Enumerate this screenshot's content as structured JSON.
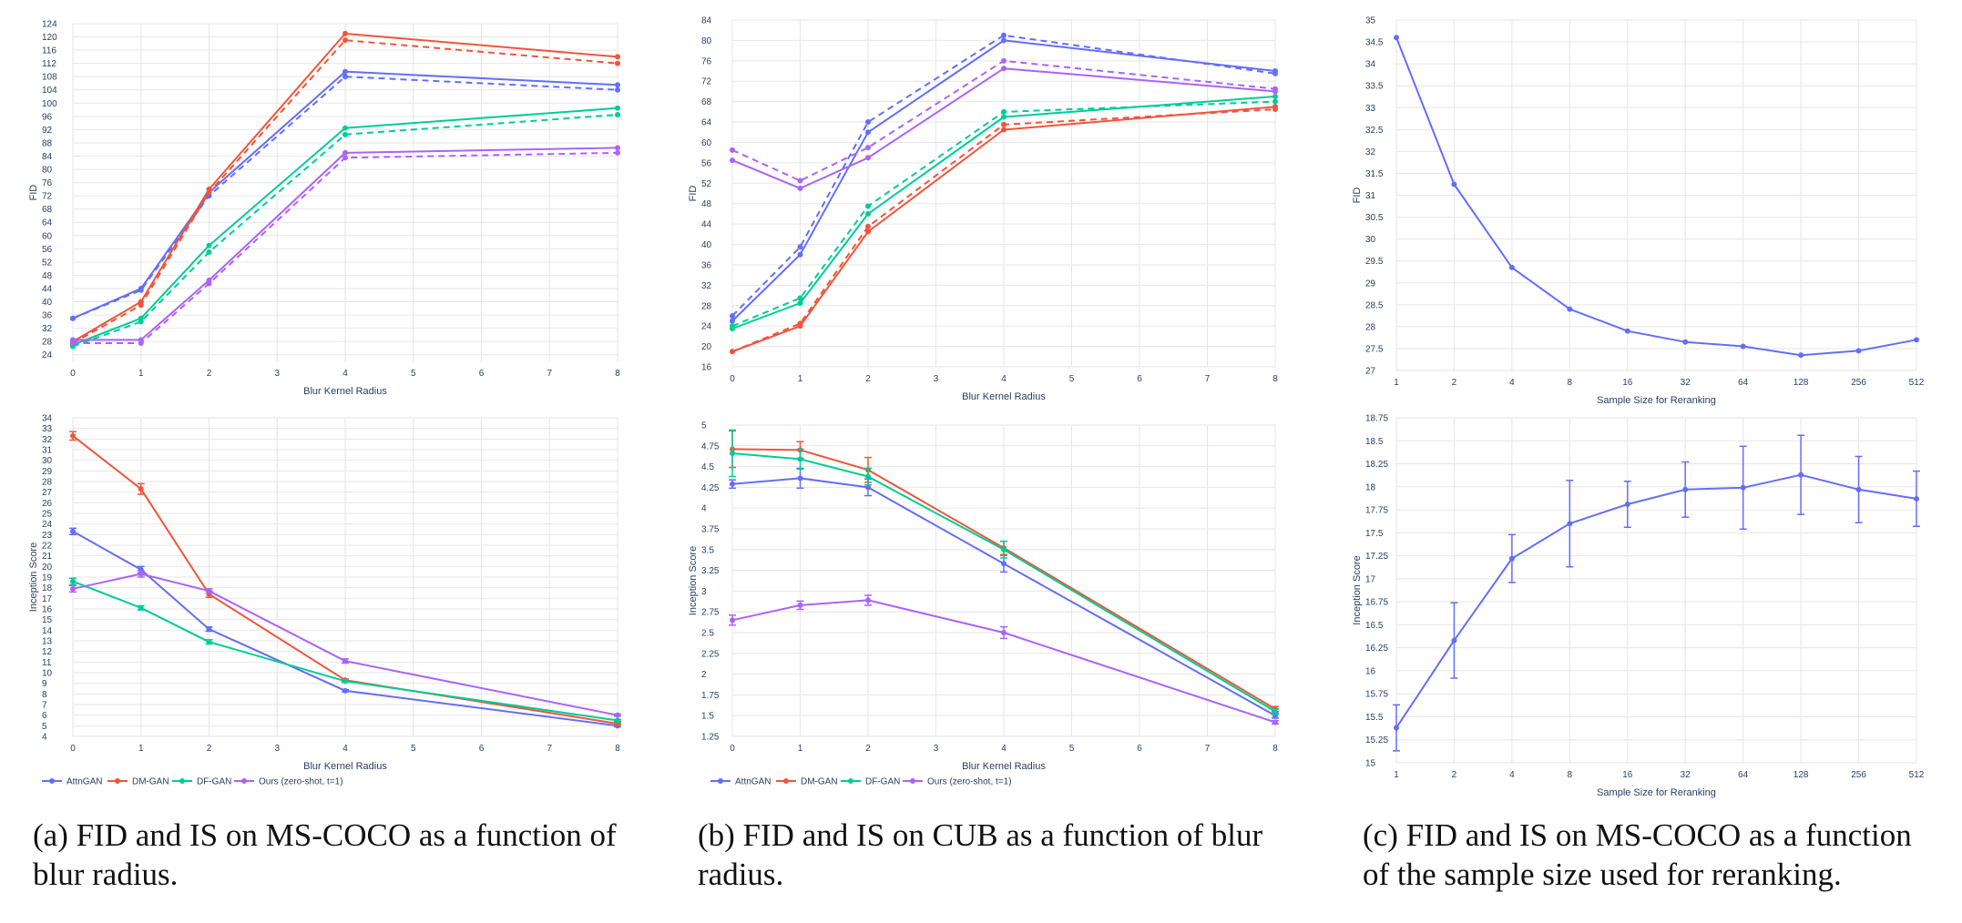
{
  "colors": {
    "AttnGAN": "#636efa",
    "DM-GAN": "#ef553b",
    "DF-GAN": "#00cc96",
    "Ours": "#ab63fa",
    "grid": "#e6e6e6",
    "axis_text": "#2a3f5f"
  },
  "captions": {
    "a": "(a) FID and IS on MS-COCO as a function of blur radius.",
    "b": "(b) FID and IS on CUB as a function of blur radius.",
    "c": "(c) FID and IS on MS-COCO as a function of the sample size used for reranking."
  },
  "legend_entries": [
    "AttnGAN",
    "DM-GAN",
    "DF-GAN",
    "Ours (zero-shot, t=1)"
  ],
  "chart_data": [
    {
      "id": "a-fid",
      "type": "line",
      "title": "",
      "xlabel": "Blur Kernel Radius",
      "ylabel": "FID",
      "x": [
        0,
        1,
        2,
        4,
        8
      ],
      "xlim": [
        0,
        8
      ],
      "xticks": [
        0,
        1,
        2,
        3,
        4,
        5,
        6,
        7,
        8
      ],
      "ylim": [
        22,
        124
      ],
      "yticks": [
        24,
        28,
        32,
        36,
        40,
        44,
        48,
        52,
        56,
        60,
        64,
        68,
        72,
        76,
        80,
        84,
        88,
        92,
        96,
        100,
        104,
        108,
        112,
        116,
        120,
        124
      ],
      "series": [
        {
          "name": "AttnGAN",
          "color_key": "AttnGAN",
          "values": [
            35,
            44,
            73,
            109.5,
            105.5
          ]
        },
        {
          "name": "AttnGAN",
          "color_key": "AttnGAN",
          "dashed": true,
          "values": [
            35,
            43.5,
            72,
            108,
            104
          ]
        },
        {
          "name": "DM-GAN",
          "color_key": "DM-GAN",
          "values": [
            28,
            40,
            74,
            121,
            114
          ]
        },
        {
          "name": "DM-GAN",
          "color_key": "DM-GAN",
          "dashed": true,
          "values": [
            27.5,
            39,
            73,
            119,
            112
          ]
        },
        {
          "name": "DF-GAN",
          "color_key": "DF-GAN",
          "values": [
            27,
            35,
            57,
            92.5,
            98.5
          ]
        },
        {
          "name": "DF-GAN",
          "color_key": "DF-GAN",
          "dashed": true,
          "values": [
            26.5,
            34,
            55,
            90.5,
            96.5
          ]
        },
        {
          "name": "Ours (zero-shot, t=1)",
          "color_key": "Ours",
          "values": [
            28.5,
            28.5,
            46.5,
            85,
            86.5
          ]
        },
        {
          "name": "Ours (zero-shot, t=1)",
          "color_key": "Ours",
          "dashed": true,
          "values": [
            27.5,
            27.5,
            45.5,
            83.5,
            85
          ]
        }
      ]
    },
    {
      "id": "b-fid",
      "type": "line",
      "title": "",
      "xlabel": "Blur Kernel Radius",
      "ylabel": "FID",
      "x": [
        0,
        1,
        2,
        4,
        8
      ],
      "xlim": [
        0,
        8
      ],
      "xticks": [
        0,
        1,
        2,
        3,
        4,
        5,
        6,
        7,
        8
      ],
      "ylim": [
        16,
        84
      ],
      "yticks": [
        16,
        20,
        24,
        28,
        32,
        36,
        40,
        44,
        48,
        52,
        56,
        60,
        64,
        68,
        72,
        76,
        80,
        84
      ],
      "series": [
        {
          "name": "AttnGAN",
          "color_key": "AttnGAN",
          "values": [
            25,
            38,
            62,
            80,
            74
          ]
        },
        {
          "name": "AttnGAN",
          "color_key": "AttnGAN",
          "dashed": true,
          "values": [
            26,
            39.5,
            64,
            81,
            73.5
          ]
        },
        {
          "name": "DM-GAN",
          "color_key": "DM-GAN",
          "values": [
            19,
            24,
            42.5,
            62.5,
            67
          ]
        },
        {
          "name": "DM-GAN",
          "color_key": "DM-GAN",
          "dashed": true,
          "values": [
            19,
            24.5,
            43.5,
            63.5,
            66.5
          ]
        },
        {
          "name": "DF-GAN",
          "color_key": "DF-GAN",
          "values": [
            23.5,
            28.5,
            46,
            65,
            69
          ]
        },
        {
          "name": "DF-GAN",
          "color_key": "DF-GAN",
          "dashed": true,
          "values": [
            24,
            29.5,
            47.5,
            66,
            68
          ]
        },
        {
          "name": "Ours (zero-shot, t=1)",
          "color_key": "Ours",
          "values": [
            56.5,
            51,
            57,
            74.5,
            70
          ]
        },
        {
          "name": "Ours (zero-shot, t=1)",
          "color_key": "Ours",
          "dashed": true,
          "values": [
            58.5,
            52.5,
            59,
            76,
            70.5
          ]
        }
      ]
    },
    {
      "id": "c-fid",
      "type": "line",
      "title": "",
      "xlabel": "Sample Size for Reranking",
      "ylabel": "FID",
      "x": [
        1,
        2,
        4,
        8,
        16,
        32,
        64,
        128,
        256,
        512
      ],
      "xticklabels": [
        "1",
        "2",
        "4",
        "8",
        "16",
        "32",
        "64",
        "128",
        "256",
        "512"
      ],
      "ylim": [
        27,
        35
      ],
      "yticks": [
        27,
        27.5,
        28,
        28.5,
        29,
        29.5,
        30,
        30.5,
        31,
        31.5,
        32,
        32.5,
        33,
        33.5,
        34,
        34.5,
        35
      ],
      "series": [
        {
          "name": "Ours",
          "color_key": "AttnGAN",
          "values": [
            34.6,
            31.25,
            29.35,
            28.4,
            27.9,
            27.65,
            27.55,
            27.35,
            27.45,
            27.7
          ]
        }
      ]
    },
    {
      "id": "a-is",
      "type": "line",
      "title": "",
      "xlabel": "Blur Kernel Radius",
      "ylabel": "Inception Score",
      "x": [
        0,
        1,
        2,
        4,
        8
      ],
      "xlim": [
        0,
        8
      ],
      "xticks": [
        0,
        1,
        2,
        3,
        4,
        5,
        6,
        7,
        8
      ],
      "ylim": [
        4,
        34
      ],
      "yticks": [
        4,
        5,
        6,
        7,
        8,
        9,
        10,
        11,
        12,
        13,
        14,
        15,
        16,
        17,
        18,
        19,
        20,
        21,
        22,
        23,
        24,
        25,
        26,
        27,
        28,
        29,
        30,
        31,
        32,
        33,
        34
      ],
      "series": [
        {
          "name": "AttnGAN",
          "color_key": "AttnGAN",
          "values": [
            23.3,
            19.7,
            14.1,
            8.3,
            5.0
          ],
          "errors": [
            0.3,
            0.3,
            0.2,
            0.1,
            0.1
          ]
        },
        {
          "name": "DM-GAN",
          "color_key": "DM-GAN",
          "values": [
            32.3,
            27.3,
            17.4,
            9.3,
            5.2
          ],
          "errors": [
            0.4,
            0.5,
            0.3,
            0.1,
            0.1
          ]
        },
        {
          "name": "DF-GAN",
          "color_key": "DF-GAN",
          "values": [
            18.6,
            16.1,
            12.9,
            9.2,
            5.5
          ],
          "errors": [
            0.3,
            0.2,
            0.2,
            0.1,
            0.1
          ]
        },
        {
          "name": "Ours (zero-shot, t=1)",
          "color_key": "Ours",
          "values": [
            17.9,
            19.3,
            17.7,
            11.1,
            6.0
          ],
          "errors": [
            0.3,
            0.3,
            0.2,
            0.2,
            0.1
          ]
        }
      ]
    },
    {
      "id": "b-is",
      "type": "line",
      "title": "",
      "xlabel": "Blur Kernel Radius",
      "ylabel": "Inception Score",
      "x": [
        0,
        1,
        2,
        4,
        8
      ],
      "xlim": [
        0,
        8
      ],
      "xticks": [
        0,
        1,
        2,
        3,
        4,
        5,
        6,
        7,
        8
      ],
      "ylim": [
        1.25,
        5
      ],
      "yticks": [
        1.25,
        1.5,
        1.75,
        2,
        2.25,
        2.5,
        2.75,
        3,
        3.25,
        3.5,
        3.75,
        4,
        4.25,
        4.5,
        4.75,
        5
      ],
      "series": [
        {
          "name": "AttnGAN",
          "color_key": "AttnGAN",
          "values": [
            4.29,
            4.36,
            4.25,
            3.33,
            1.5
          ],
          "errors": [
            0.05,
            0.12,
            0.1,
            0.1,
            0.03
          ]
        },
        {
          "name": "DM-GAN",
          "color_key": "DM-GAN",
          "values": [
            4.71,
            4.7,
            4.46,
            3.52,
            1.58
          ],
          "errors": [
            0.22,
            0.1,
            0.15,
            0.08,
            0.03
          ]
        },
        {
          "name": "DF-GAN",
          "color_key": "DF-GAN",
          "values": [
            4.66,
            4.59,
            4.38,
            3.5,
            1.55
          ],
          "errors": [
            0.28,
            0.12,
            0.1,
            0.1,
            0.03
          ]
        },
        {
          "name": "Ours (zero-shot, t=1)",
          "color_key": "Ours",
          "values": [
            2.65,
            2.83,
            2.89,
            2.5,
            1.42
          ],
          "errors": [
            0.06,
            0.05,
            0.06,
            0.07,
            0.02
          ]
        }
      ]
    },
    {
      "id": "c-is",
      "type": "line",
      "title": "",
      "xlabel": "Sample Size for Reranking",
      "ylabel": "Inception Score",
      "x": [
        1,
        2,
        4,
        8,
        16,
        32,
        64,
        128,
        256,
        512
      ],
      "xticklabels": [
        "1",
        "2",
        "4",
        "8",
        "16",
        "32",
        "64",
        "128",
        "256",
        "512"
      ],
      "ylim": [
        15,
        18.75
      ],
      "yticks": [
        15,
        15.25,
        15.5,
        15.75,
        16,
        16.25,
        16.5,
        16.75,
        17,
        17.25,
        17.5,
        17.75,
        18,
        18.25,
        18.5,
        18.75
      ],
      "series": [
        {
          "name": "Ours",
          "color_key": "AttnGAN",
          "values": [
            15.38,
            16.33,
            17.22,
            17.6,
            17.81,
            17.97,
            17.99,
            18.13,
            17.97,
            17.87
          ],
          "errors": [
            0.25,
            0.41,
            0.26,
            0.47,
            0.25,
            0.3,
            0.45,
            0.43,
            0.36,
            0.3
          ]
        }
      ]
    }
  ]
}
